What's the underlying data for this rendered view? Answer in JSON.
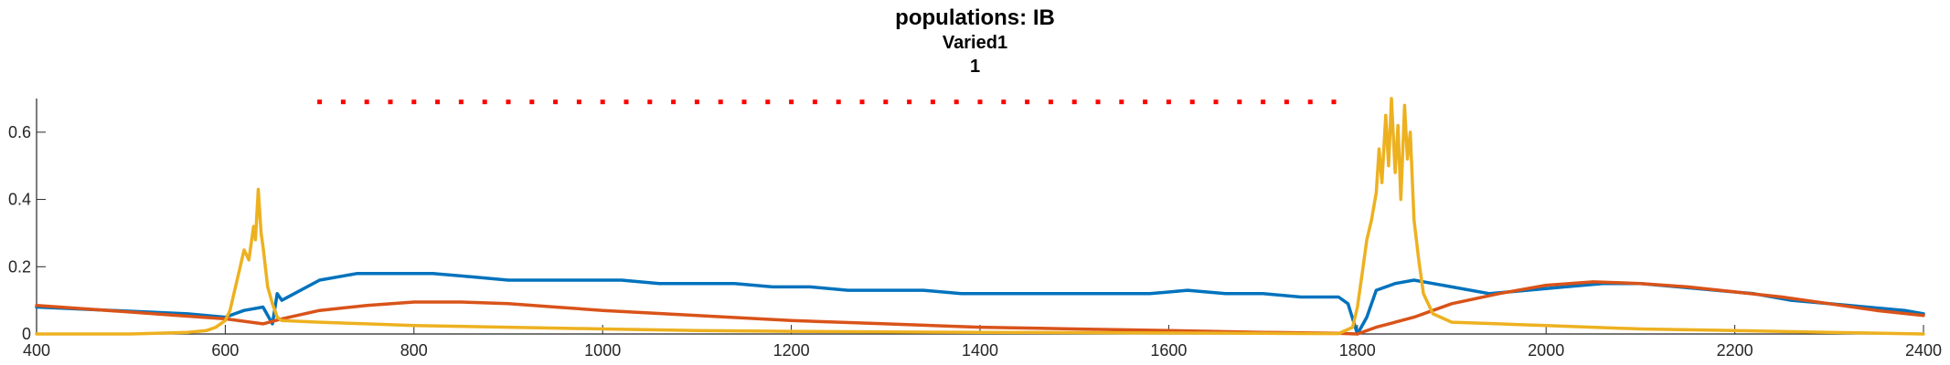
{
  "chart_data": {
    "type": "line",
    "title": "populations: IB",
    "subtitle": "Varied1",
    "subtitle2": "1",
    "xlabel": "",
    "ylabel": "",
    "xlim": [
      400,
      2400
    ],
    "ylim": [
      0,
      0.7
    ],
    "xticks": [
      400,
      600,
      800,
      1000,
      1200,
      1400,
      1600,
      1800,
      2000,
      2200,
      2400
    ],
    "yticks": [
      0,
      0.2,
      0.4,
      0.6
    ],
    "ytick_labels": [
      "0",
      "0.2",
      "0.4",
      "0.6"
    ],
    "grid": false,
    "legend": "none",
    "stimulus_markers": {
      "color": "#ff0000",
      "y": 0.69,
      "x_start": 700,
      "x_end": 1790,
      "spacing": 25
    },
    "series": [
      {
        "color": "#0072BD",
        "x": [
          400,
          440,
          480,
          520,
          560,
          580,
          600,
          610,
          620,
          640,
          650,
          655,
          660,
          700,
          740,
          780,
          820,
          860,
          900,
          940,
          980,
          1020,
          1060,
          1100,
          1140,
          1180,
          1220,
          1260,
          1300,
          1340,
          1380,
          1420,
          1460,
          1500,
          1540,
          1580,
          1620,
          1660,
          1700,
          1740,
          1780,
          1790,
          1800,
          1810,
          1820,
          1840,
          1860,
          1880,
          1900,
          1940,
          1980,
          2020,
          2060,
          2100,
          2140,
          2180,
          2220,
          2260,
          2300,
          2340,
          2380,
          2400
        ],
        "y": [
          0.08,
          0.075,
          0.07,
          0.065,
          0.06,
          0.055,
          0.05,
          0.06,
          0.07,
          0.08,
          0.03,
          0.12,
          0.1,
          0.16,
          0.18,
          0.18,
          0.18,
          0.17,
          0.16,
          0.16,
          0.16,
          0.16,
          0.15,
          0.15,
          0.15,
          0.14,
          0.14,
          0.13,
          0.13,
          0.13,
          0.12,
          0.12,
          0.12,
          0.12,
          0.12,
          0.12,
          0.13,
          0.12,
          0.12,
          0.11,
          0.11,
          0.09,
          0.0,
          0.05,
          0.13,
          0.15,
          0.16,
          0.15,
          0.14,
          0.12,
          0.13,
          0.14,
          0.15,
          0.15,
          0.14,
          0.13,
          0.12,
          0.1,
          0.09,
          0.08,
          0.07,
          0.06
        ]
      },
      {
        "color": "#D95319",
        "x": [
          400,
          450,
          500,
          550,
          600,
          640,
          660,
          700,
          750,
          800,
          850,
          900,
          950,
          1000,
          1100,
          1200,
          1300,
          1400,
          1500,
          1600,
          1700,
          1780,
          1800,
          1820,
          1840,
          1860,
          1880,
          1900,
          1950,
          2000,
          2050,
          2100,
          2150,
          2200,
          2250,
          2300,
          2350,
          2400
        ],
        "y": [
          0.085,
          0.075,
          0.065,
          0.055,
          0.045,
          0.03,
          0.045,
          0.07,
          0.085,
          0.095,
          0.095,
          0.09,
          0.08,
          0.07,
          0.055,
          0.04,
          0.03,
          0.02,
          0.015,
          0.01,
          0.005,
          0.002,
          0.0,
          0.02,
          0.035,
          0.05,
          0.07,
          0.09,
          0.12,
          0.145,
          0.155,
          0.15,
          0.14,
          0.125,
          0.11,
          0.09,
          0.07,
          0.055
        ]
      },
      {
        "color": "#EDB120",
        "x": [
          400,
          500,
          560,
          580,
          590,
          600,
          605,
          610,
          615,
          620,
          625,
          630,
          632,
          635,
          638,
          640,
          645,
          650,
          655,
          660,
          700,
          750,
          800,
          900,
          1000,
          1100,
          1200,
          1300,
          1400,
          1500,
          1600,
          1700,
          1780,
          1795,
          1800,
          1805,
          1810,
          1815,
          1820,
          1823,
          1826,
          1830,
          1833,
          1836,
          1840,
          1843,
          1846,
          1850,
          1853,
          1856,
          1860,
          1865,
          1870,
          1880,
          1900,
          1950,
          2000,
          2100,
          2200,
          2300,
          2400
        ],
        "y": [
          0.0,
          0.0,
          0.005,
          0.01,
          0.02,
          0.04,
          0.07,
          0.13,
          0.19,
          0.25,
          0.22,
          0.32,
          0.28,
          0.43,
          0.3,
          0.26,
          0.14,
          0.09,
          0.05,
          0.04,
          0.035,
          0.03,
          0.025,
          0.02,
          0.015,
          0.01,
          0.008,
          0.006,
          0.005,
          0.004,
          0.003,
          0.002,
          0.001,
          0.02,
          0.08,
          0.18,
          0.28,
          0.34,
          0.42,
          0.55,
          0.45,
          0.65,
          0.5,
          0.7,
          0.48,
          0.62,
          0.4,
          0.68,
          0.52,
          0.6,
          0.34,
          0.22,
          0.12,
          0.06,
          0.035,
          0.03,
          0.025,
          0.015,
          0.01,
          0.005,
          0.0
        ]
      }
    ]
  }
}
